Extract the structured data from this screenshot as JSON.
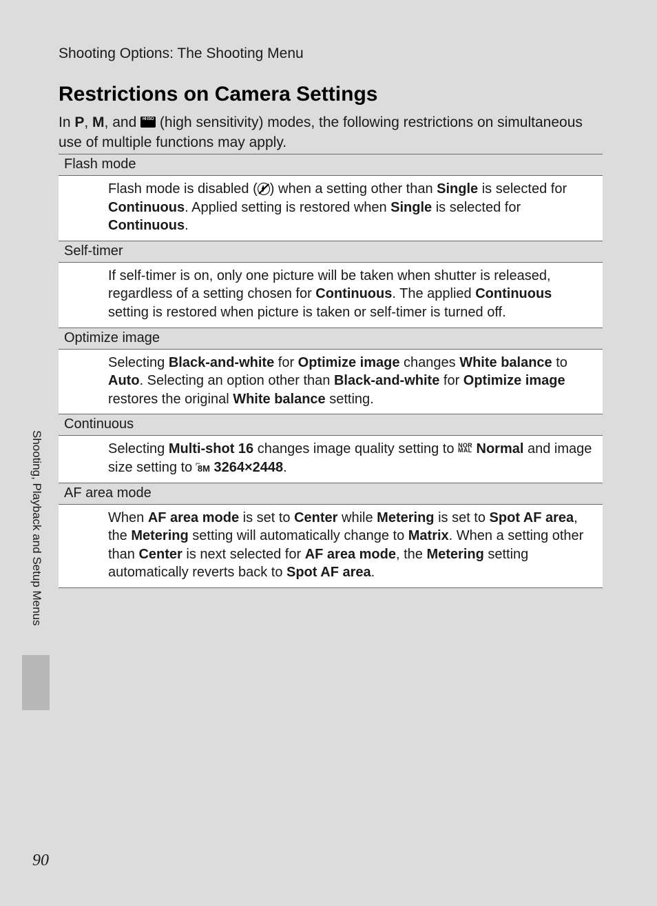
{
  "header": "Shooting Options: The Shooting Menu",
  "title": "Restrictions on Camera Settings",
  "intro": {
    "pre": "In ",
    "p": "P",
    "comma": ", ",
    "m": "M",
    "mid": ", and ",
    "post": " (high sensitivity) modes, the following restrictions on simultaneous use of multiple functions may apply."
  },
  "rows": {
    "flash": {
      "head": "Flash mode",
      "t1": "Flash mode is disabled (",
      "t2": ") when a setting other than ",
      "b1": "Single",
      "t3": " is selected for ",
      "b2": "Continuous",
      "t4": ". Applied setting is restored when ",
      "b3": "Single",
      "t5": " is selected for ",
      "b4": "Continuous",
      "t6": "."
    },
    "selftimer": {
      "head": "Self-timer",
      "t1": "If self-timer is on, only one picture will be taken when shutter is released, regardless of a setting chosen for ",
      "b1": "Continuous",
      "t2": ". The applied ",
      "b2": "Continuous",
      "t3": " setting is restored when picture is taken or self-timer is turned off."
    },
    "optimize": {
      "head": "Optimize image",
      "t1": "Selecting ",
      "b1": "Black-and-white",
      "t2": " for ",
      "b2": "Optimize image",
      "t3": " changes ",
      "b3": "White balance",
      "t4": " to ",
      "b4": "Auto",
      "t5": ". Selecting an option other than ",
      "b5": "Black-and-white",
      "t6": " for ",
      "b6": "Optimize image",
      "t7": " restores the original ",
      "b7": "White balance",
      "t8": " setting."
    },
    "continuous": {
      "head": "Continuous",
      "t1": "Selecting ",
      "b1": "Multi-shot 16",
      "t2": " changes image quality setting to ",
      "b2": "Normal",
      "t3": " and image size setting to ",
      "b3": "3264×2448",
      "t4": ".",
      "icon_normal_top": "NOR",
      "icon_normal_bot": "MAL",
      "icon_size": "8M"
    },
    "afarea": {
      "head": "AF area mode",
      "t1": "When ",
      "b1": "AF area mode",
      "t2": " is set to ",
      "b2": "Center",
      "t3": " while ",
      "b3": "Metering",
      "t4": " is set to ",
      "b4": "Spot AF area",
      "t5": ", the ",
      "b5": "Metering",
      "t6": " setting will automatically change to ",
      "b6": "Matrix",
      "t7": ". When a setting other than ",
      "b7": "Center",
      "t8": " is next selected for ",
      "b8": "AF area mode",
      "t9": ", the ",
      "b9": "Metering",
      "t10": " setting automatically reverts back to ",
      "b10": "Spot AF area",
      "t11": "."
    }
  },
  "side_text": "Shooting, Playback and Setup Menus",
  "page_number": "90"
}
